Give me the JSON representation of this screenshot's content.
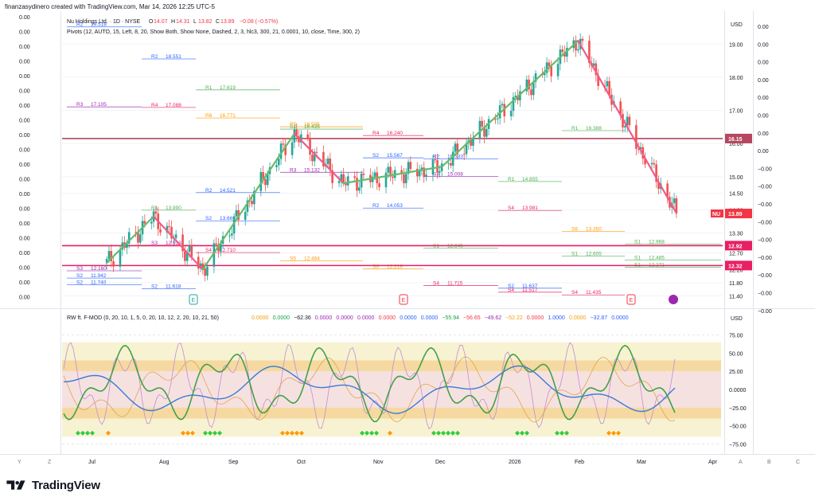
{
  "header": {
    "caption": "finanzasydinero created with TradingView.com, Mar 14, 2026 12:25 UTC-5"
  },
  "legend": {
    "symbol": "Nu Holdings Ltd. · 1D · NYSE",
    "o_label": "O",
    "o_val": "14.07",
    "h_label": "H",
    "h_val": "14.31",
    "l_label": "L",
    "l_val": "13.82",
    "c_label": "C",
    "c_val": "13.89",
    "change": "−0.08 (−0.57%)",
    "pivots": "Pivots (12, AUTO, 15, Left, 8, 20, Show Both, Show None, Dashed, 2, 3, hlc3, 300, 21, 0.0001, 10, close, Time, 300, 2)"
  },
  "indicator": {
    "title": "RW ft. F-MOD (0, 20, 10, 1, 5, 0, 20, 10, 12, 2, 20, 10, 21, 50)",
    "values": [
      "0.0000",
      "0.0000",
      "−62.36",
      "0.0000",
      "0.0000",
      "0.0000",
      "0.0000",
      "0.0000",
      "0.0000",
      "−55.94",
      "−56.65",
      "−49.62",
      "−52.22",
      "0.0000",
      "1.0000",
      "0.0000",
      "−32.87",
      "0.0000"
    ],
    "value_colors": [
      "#f59e0b",
      "#16a34a",
      "#131722",
      "#9c27b0",
      "#9c27b0",
      "#9c27b0",
      "#f23645",
      "#2962ff",
      "#2962ff",
      "#16a34a",
      "#f23645",
      "#9c27b0",
      "#f59e0b",
      "#f23645",
      "#2962ff",
      "#f59e0b",
      "#2962ff",
      "#2962ff"
    ],
    "currency_label": "USD",
    "axis_ticks": [
      "75.00",
      "50.00",
      "25.00",
      "0.0000",
      "−25.00",
      "−50.00",
      "−75.00"
    ],
    "axis_tick_values": [
      75,
      50,
      25,
      0,
      -25,
      -50,
      -75
    ]
  },
  "price_axis": {
    "currency": "USD",
    "ticks": [
      "19.00",
      "18.00",
      "17.00",
      "16.00",
      "15.00",
      "14.50",
      "14.00",
      "13.30",
      "12.70",
      "12.20",
      "11.80",
      "11.40"
    ],
    "tick_values": [
      19.0,
      18.0,
      17.0,
      16.0,
      15.0,
      14.5,
      14.0,
      13.3,
      12.7,
      12.2,
      11.8,
      11.4
    ],
    "labels": [
      {
        "text": "16.15",
        "value": 16.15,
        "color": "#b5475f"
      },
      {
        "text": "NU",
        "value": 13.89,
        "color": "#f23645",
        "prefix": true
      },
      {
        "text": "13.89",
        "value": 13.89,
        "color": "#f23645"
      },
      {
        "text": "12.92",
        "value": 12.92,
        "color": "#e91e63"
      },
      {
        "text": "12.32",
        "value": 12.32,
        "color": "#e91e63"
      }
    ]
  },
  "outer_axis_a": {
    "values": [
      "0.00",
      "0.00",
      "0.00",
      "0.00",
      "0.00",
      "0.00",
      "0.00",
      "0.00",
      "−0.00",
      "−0.00",
      "−0.00",
      "−0.00",
      "−0.00",
      "−0.00",
      "−0.00",
      "−0.00",
      "−0.00"
    ]
  },
  "outer_axis_b": {
    "values": [
      "0.00",
      "0.00",
      "0.00",
      "0.00",
      "0.00",
      "0.00",
      "0.00",
      "0.00",
      "0.00",
      "0.00",
      "0.00",
      "0.00",
      "0.00",
      "0.00",
      "0.00",
      "0.00",
      "0.00",
      "0.00",
      "0.00",
      "0.00"
    ]
  },
  "time_axis": {
    "labels": [
      "Jul",
      "Aug",
      "Sep",
      "Oct",
      "Nov",
      "Dec",
      "2026",
      "Feb",
      "Mar",
      "Apr"
    ],
    "letters": [
      "Y",
      "Z",
      "A",
      "B",
      "C"
    ]
  },
  "event_markers": [
    "E",
    "E",
    "E",
    "E"
  ],
  "chart_data": {
    "type": "candlestick",
    "title": "Nu Holdings Ltd. · 1D · NYSE",
    "ylabel": "USD",
    "ylim": [
      11.2,
      19.8
    ],
    "last_price": 13.89,
    "approx_trendline": [
      {
        "date": "2025-07-01",
        "price": 12.4
      },
      {
        "date": "2025-07-22",
        "price": 13.8
      },
      {
        "date": "2025-08-13",
        "price": 12.2
      },
      {
        "date": "2025-09-23",
        "price": 16.3
      },
      {
        "date": "2025-10-15",
        "price": 14.8
      },
      {
        "date": "2025-11-28",
        "price": 15.3
      },
      {
        "date": "2026-01-28",
        "price": 19.1
      },
      {
        "date": "2026-03-13",
        "price": 13.9
      }
    ],
    "pivot_levels": [
      {
        "label": "R3",
        "value": "17.105",
        "color": "#9c27b0"
      },
      {
        "label": "R4",
        "value": "17.088",
        "color": "#e91e63"
      },
      {
        "label": "R6",
        "value": "16.771",
        "color": "#ff9800"
      },
      {
        "label": "R5",
        "value": "16.505",
        "color": "#ff9800"
      },
      {
        "label": "R4",
        "value": "16.240",
        "color": "#e91e63"
      },
      {
        "label": "R2",
        "value": "15.533",
        "color": "#2962ff"
      },
      {
        "label": "R1",
        "value": "14.855",
        "color": "#4caf50"
      },
      {
        "label": "S1",
        "value": "12.605",
        "color": "#4caf50"
      },
      {
        "label": "S1",
        "value": "12.271",
        "color": "#4caf50"
      },
      {
        "label": "S2",
        "value": "11.740",
        "color": "#2962ff"
      },
      {
        "label": "R1",
        "value": "13.990",
        "color": "#4caf50"
      },
      {
        "label": "R2",
        "value": "14.521",
        "color": "#2962ff"
      },
      {
        "label": "R3",
        "value": "15.132",
        "color": "#9c27b0"
      },
      {
        "label": "R2",
        "value": "14.053",
        "color": "#2962ff"
      },
      {
        "label": "S1",
        "value": "12.845",
        "color": "#4caf50"
      },
      {
        "label": "S2",
        "value": "11.637",
        "color": "#2962ff"
      },
      {
        "label": "R1",
        "value": "16.388",
        "color": "#4caf50"
      },
      {
        "label": "S1",
        "value": "12.968",
        "color": "#4caf50"
      },
      {
        "label": "S2",
        "value": "11.942",
        "color": "#2962ff"
      },
      {
        "label": "S3",
        "value": "12.933",
        "color": "#9c27b0"
      },
      {
        "label": "S4",
        "value": "12.710",
        "color": "#e91e63"
      },
      {
        "label": "S5",
        "value": "12.464",
        "color": "#ff9800"
      },
      {
        "label": "S6",
        "value": "12.218",
        "color": "#ff9800"
      },
      {
        "label": "S4",
        "value": "11.715",
        "color": "#e91e63"
      },
      {
        "label": "S4",
        "value": "11.517",
        "color": "#e91e63"
      },
      {
        "label": "S4",
        "value": "11.435",
        "color": "#e91e63"
      },
      {
        "label": "R4",
        "value": "19.980",
        "color": "#e91e63"
      },
      {
        "label": "R2",
        "value": "19.518",
        "color": "#2962ff"
      },
      {
        "label": "R2",
        "value": "18.551",
        "color": "#2962ff"
      },
      {
        "label": "R1",
        "value": "17.619",
        "color": "#4caf50"
      },
      {
        "label": "S1",
        "value": "16.435",
        "color": "#4caf50"
      },
      {
        "label": "S2",
        "value": "15.567",
        "color": "#2962ff"
      },
      {
        "label": "S3",
        "value": "15.008",
        "color": "#9c27b0"
      },
      {
        "label": "S4",
        "value": "13.981",
        "color": "#e91e63"
      },
      {
        "label": "S6",
        "value": "13.350",
        "color": "#ff9800"
      },
      {
        "label": "S1",
        "value": "12.485",
        "color": "#4caf50"
      },
      {
        "label": "S3",
        "value": "12.160",
        "color": "#9c27b0"
      },
      {
        "label": "S2",
        "value": "11.618",
        "color": "#2962ff"
      },
      {
        "label": "S2",
        "value": "13.669",
        "color": "#2962ff"
      }
    ]
  }
}
